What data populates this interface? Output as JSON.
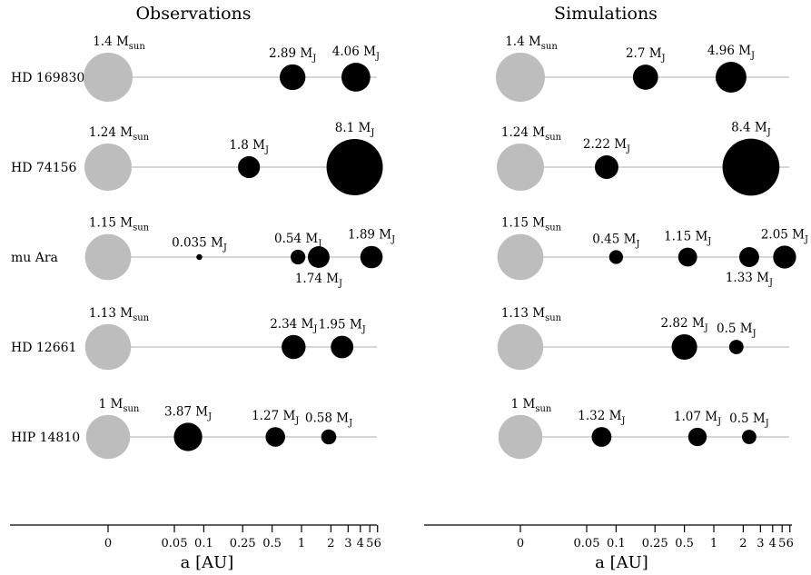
{
  "chart_data": [
    {
      "type": "scatter",
      "title": "Observations",
      "xlabel": "a [AU]",
      "x_ticks": [
        "0",
        "0.05",
        "0.1",
        "0.25",
        "0.5",
        "1",
        "2",
        "3",
        "4",
        "5",
        "6"
      ],
      "systems": [
        {
          "name": "HD 169830",
          "star": {
            "mass": "1.4",
            "unit": "M",
            "unit_sub": "sun"
          },
          "planets": [
            {
              "a": 0.81,
              "mass": "2.89",
              "unit": "M",
              "unit_sub": "J"
            },
            {
              "a": 3.6,
              "mass": "4.06",
              "unit": "M",
              "unit_sub": "J"
            }
          ]
        },
        {
          "name": "HD 74156",
          "star": {
            "mass": "1.24",
            "unit": "M",
            "unit_sub": "sun"
          },
          "planets": [
            {
              "a": 0.29,
              "mass": "1.8",
              "unit": "M",
              "unit_sub": "J"
            },
            {
              "a": 3.5,
              "mass": "8.1",
              "unit": "M",
              "unit_sub": "J"
            }
          ]
        },
        {
          "name": "mu Ara",
          "star": {
            "mass": "1.15",
            "unit": "M",
            "unit_sub": "sun"
          },
          "planets": [
            {
              "a": 0.09,
              "mass": "0.035",
              "unit": "M",
              "unit_sub": "J"
            },
            {
              "a": 0.92,
              "mass": "0.54",
              "unit": "M",
              "unit_sub": "J"
            },
            {
              "a": 1.5,
              "mass": "1.74",
              "unit": "M",
              "unit_sub": "J"
            },
            {
              "a": 5.2,
              "mass": "1.89",
              "unit": "M",
              "unit_sub": "J"
            }
          ]
        },
        {
          "name": "HD 12661",
          "star": {
            "mass": "1.13",
            "unit": "M",
            "unit_sub": "sun"
          },
          "planets": [
            {
              "a": 0.83,
              "mass": "2.34",
              "unit": "M",
              "unit_sub": "J"
            },
            {
              "a": 2.6,
              "mass": "1.95",
              "unit": "M",
              "unit_sub": "J"
            }
          ]
        },
        {
          "name": "HIP 14810",
          "star": {
            "mass": "1",
            "unit": "M",
            "unit_sub": "sun"
          },
          "planets": [
            {
              "a": 0.069,
              "mass": "3.87",
              "unit": "M",
              "unit_sub": "J"
            },
            {
              "a": 0.54,
              "mass": "1.27",
              "unit": "M",
              "unit_sub": "J"
            },
            {
              "a": 1.9,
              "mass": "0.58",
              "unit": "M",
              "unit_sub": "J"
            }
          ]
        }
      ]
    },
    {
      "type": "scatter",
      "title": "Simulations",
      "xlabel": "a [AU]",
      "x_ticks": [
        "0",
        "0.05",
        "0.1",
        "0.25",
        "0.5",
        "1",
        "2",
        "3",
        "4",
        "5",
        "6"
      ],
      "systems": [
        {
          "name": "HD 169830",
          "star": {
            "mass": "1.4",
            "unit": "M",
            "unit_sub": "sun"
          },
          "planets": [
            {
              "a": 0.2,
              "mass": "2.7",
              "unit": "M",
              "unit_sub": "J"
            },
            {
              "a": 1.5,
              "mass": "4.96",
              "unit": "M",
              "unit_sub": "J"
            }
          ]
        },
        {
          "name": "HD 74156",
          "star": {
            "mass": "1.24",
            "unit": "M",
            "unit_sub": "sun"
          },
          "planets": [
            {
              "a": 0.08,
              "mass": "2.22",
              "unit": "M",
              "unit_sub": "J"
            },
            {
              "a": 2.4,
              "mass": "8.4",
              "unit": "M",
              "unit_sub": "J"
            }
          ]
        },
        {
          "name": "mu Ara",
          "star": {
            "mass": "1.15",
            "unit": "M",
            "unit_sub": "sun"
          },
          "planets": [
            {
              "a": 0.1,
              "mass": "0.45",
              "unit": "M",
              "unit_sub": "J"
            },
            {
              "a": 0.54,
              "mass": "1.15",
              "unit": "M",
              "unit_sub": "J"
            },
            {
              "a": 2.3,
              "mass": "1.33",
              "unit": "M",
              "unit_sub": "J"
            },
            {
              "a": 5.3,
              "mass": "2.05",
              "unit": "M",
              "unit_sub": "J"
            }
          ]
        },
        {
          "name": "HD 12661",
          "star": {
            "mass": "1.13",
            "unit": "M",
            "unit_sub": "sun"
          },
          "planets": [
            {
              "a": 0.5,
              "mass": "2.82",
              "unit": "M",
              "unit_sub": "J"
            },
            {
              "a": 1.7,
              "mass": "0.5",
              "unit": "M",
              "unit_sub": "J"
            }
          ]
        },
        {
          "name": "HIP 14810",
          "star": {
            "mass": "1",
            "unit": "M",
            "unit_sub": "sun"
          },
          "planets": [
            {
              "a": 0.071,
              "mass": "1.32",
              "unit": "M",
              "unit_sub": "J"
            },
            {
              "a": 0.68,
              "mass": "1.07",
              "unit": "M",
              "unit_sub": "J"
            },
            {
              "a": 2.3,
              "mass": "0.5",
              "unit": "M",
              "unit_sub": "J"
            }
          ]
        }
      ]
    }
  ]
}
